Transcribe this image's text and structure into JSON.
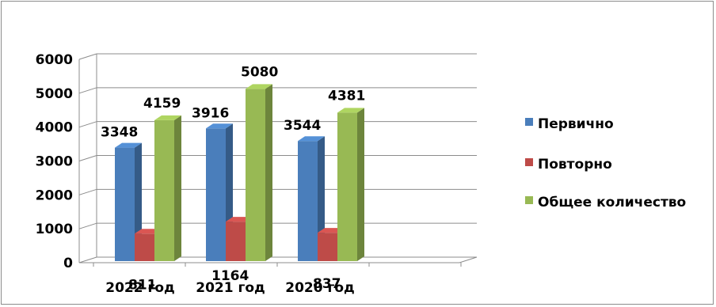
{
  "chart_data": {
    "type": "bar",
    "categories": [
      "2022 год",
      "2021 год",
      "2020 год"
    ],
    "series": [
      {
        "name": "Первично",
        "values": [
          3348,
          3916,
          3544
        ],
        "color": "#4a7ebb"
      },
      {
        "name": "Повторно",
        "values": [
          811,
          1164,
          837
        ],
        "color": "#be4b48"
      },
      {
        "name": "Общее количество",
        "values": [
          4159,
          5080,
          4381
        ],
        "color": "#98b954"
      }
    ],
    "ylim": [
      0,
      6000
    ],
    "yticks": [
      0,
      1000,
      2000,
      3000,
      4000,
      5000,
      6000
    ],
    "grid": true,
    "legend_position": "right",
    "three_d": true
  }
}
